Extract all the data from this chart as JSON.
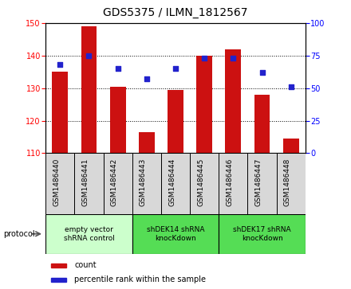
{
  "title": "GDS5375 / ILMN_1812567",
  "samples": [
    "GSM1486440",
    "GSM1486441",
    "GSM1486442",
    "GSM1486443",
    "GSM1486444",
    "GSM1486445",
    "GSM1486446",
    "GSM1486447",
    "GSM1486448"
  ],
  "counts": [
    135,
    149,
    130.5,
    116.5,
    129.5,
    140,
    142,
    128,
    114.5
  ],
  "percentiles": [
    68,
    75,
    65,
    57,
    65,
    73,
    73,
    62,
    51
  ],
  "ymin": 110,
  "ymax": 150,
  "y2min": 0,
  "y2max": 100,
  "yticks": [
    110,
    120,
    130,
    140,
    150
  ],
  "y2ticks": [
    0,
    25,
    50,
    75,
    100
  ],
  "bar_color": "#CC1111",
  "dot_color": "#2222CC",
  "bar_bottom": 110,
  "groups": [
    {
      "label": "empty vector\nshRNA control",
      "start": 0,
      "end": 3,
      "color": "#ccffcc"
    },
    {
      "label": "shDEK14 shRNA\nknocKdown",
      "start": 3,
      "end": 6,
      "color": "#66dd66"
    },
    {
      "label": "shDEK17 shRNA\nknocKdown",
      "start": 6,
      "end": 9,
      "color": "#66dd66"
    }
  ],
  "protocol_label": "protocol",
  "legend_count": "count",
  "legend_percentile": "percentile rank within the sample",
  "sample_box_color": "#d8d8d8",
  "plot_bg": "#ffffff"
}
